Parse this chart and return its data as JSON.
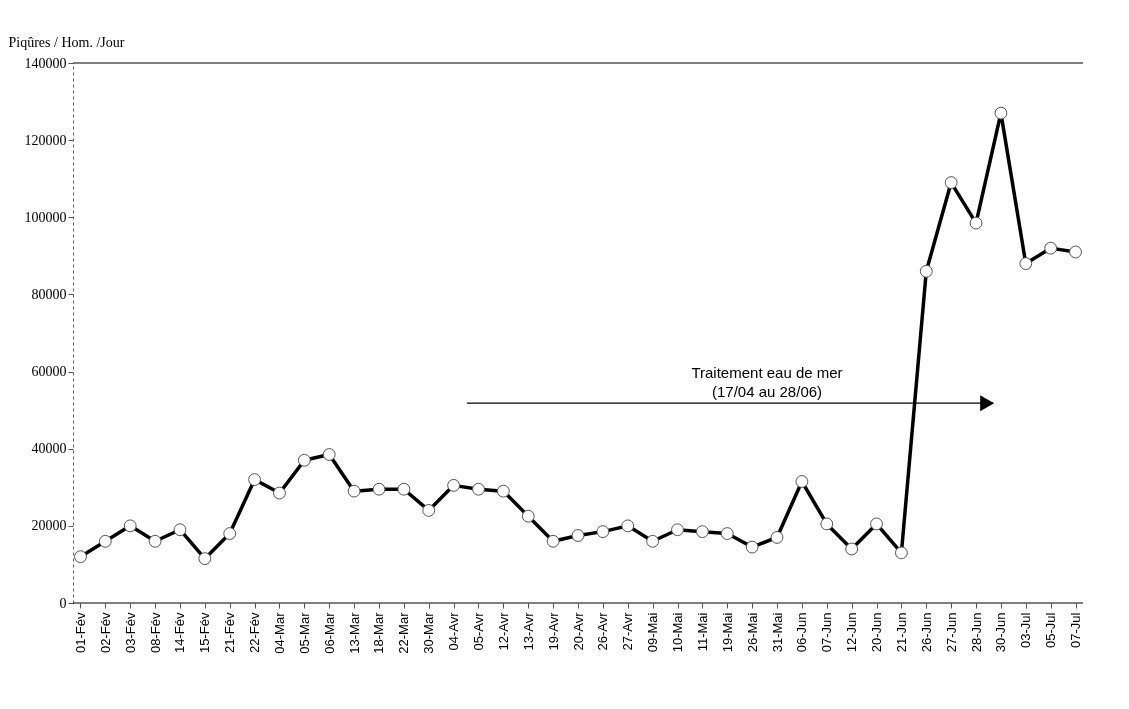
{
  "chart_data": {
    "type": "line",
    "ylabel": "Piqûres / Hom. /Jour",
    "categories": [
      "01-Fév",
      "02-Fév",
      "03-Fév",
      "08-Fév",
      "14-Fév",
      "15-Fév",
      "21-Fév",
      "22-Fév",
      "04-Mar",
      "05-Mar",
      "06-Mar",
      "13-Mar",
      "18-Mar",
      "22-Mar",
      "30-Mar",
      "04-Avr",
      "05-Avr",
      "12-Avr",
      "13-Avr",
      "19-Avr",
      "20-Avr",
      "26-Avr",
      "27-Avr",
      "09-Mai",
      "10-Mai",
      "11-Mai",
      "19-Mai",
      "26-Mai",
      "31-Mai",
      "06-Jun",
      "07-Jun",
      "12-Jun",
      "20-Jun",
      "21-Jun",
      "26-Jun",
      "27-Jun",
      "28-Jun",
      "30-Jun",
      "03-Jul",
      "05-Jul",
      "07-Jul"
    ],
    "series": [
      {
        "color": "#000000",
        "values": [
          12000,
          16000,
          20000,
          16000,
          19000,
          11500,
          18000,
          32000,
          28500,
          37000,
          38500,
          29000,
          29500,
          29500,
          24000,
          30500,
          29500,
          29000,
          22500,
          16000,
          17500,
          18500,
          20000,
          16000,
          19000,
          18500,
          18000,
          14500,
          17000,
          31500,
          20500,
          14000,
          20500,
          13000,
          86000,
          109000,
          98500,
          127000,
          88000,
          92000,
          91000
        ]
      }
    ],
    "ylim": [
      0,
      140000
    ],
    "yticks": [
      0,
      20000,
      40000,
      60000,
      80000,
      100000,
      120000,
      140000
    ],
    "grid": false,
    "marker": "circle",
    "line_style": "solid",
    "annotations": [
      "Traitement eau de mer\n(17/04 au 28/06)"
    ]
  }
}
